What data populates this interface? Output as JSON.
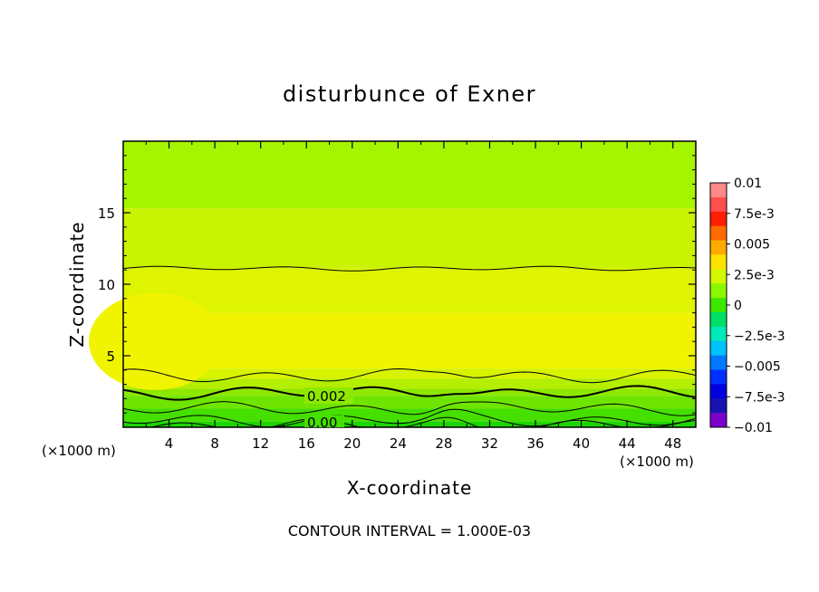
{
  "chart_data": {
    "type": "heatmap",
    "title": "disturbunce of Exner",
    "xlabel": "X-coordinate",
    "ylabel": "Z-coordinate",
    "x_unit_left": "(×1000 m)",
    "x_unit_right": "(×1000 m)",
    "footer": "CONTOUR INTERVAL = 1.000E-03",
    "xlim": [
      0,
      50
    ],
    "ylim": [
      0,
      20
    ],
    "x_ticks": [
      "4",
      "8",
      "12",
      "16",
      "20",
      "24",
      "28",
      "32",
      "36",
      "40",
      "44",
      "48"
    ],
    "y_ticks": [
      "5",
      "10",
      "15"
    ],
    "colorbar": {
      "labels": [
        "0.01",
        "7.5e-3",
        "0.005",
        "2.5e-3",
        "0",
        "−2.5e-3",
        "−0.005",
        "−7.5e-3",
        "−0.01"
      ],
      "colors": [
        "#ff8a8a",
        "#ff5050",
        "#ff1e00",
        "#ff6a00",
        "#ffab00",
        "#ffe200",
        "#d2f700",
        "#8cf700",
        "#3de800",
        "#00df66",
        "#00e9b8",
        "#00c2ff",
        "#0079ff",
        "#0030ff",
        "#0000e0",
        "#1a12b0",
        "#7a00cc"
      ]
    },
    "contour_labels": [
      "0.002",
      "0.00"
    ],
    "bands": [
      {
        "range": [
          15.3,
          20
        ],
        "value": 0.0015,
        "color": "#a6f500"
      },
      {
        "range": [
          11.1,
          15.3
        ],
        "value": 0.0025,
        "color": "#c9f300"
      },
      {
        "range": [
          8.0,
          11.1
        ],
        "value": 0.003,
        "color": "#def400"
      },
      {
        "range": [
          4.1,
          8.0
        ],
        "value": 0.0035,
        "color": "#f0f400"
      },
      {
        "range": [
          3.4,
          4.1
        ],
        "value": 0.003,
        "color": "#d7f300"
      },
      {
        "range": [
          2.7,
          3.4
        ],
        "value": 0.0025,
        "color": "#b4ee00"
      },
      {
        "range": [
          2.2,
          2.7
        ],
        "value": 0.002,
        "color": "#8ee800"
      },
      {
        "range": [
          1.3,
          2.2
        ],
        "value": 0.0015,
        "color": "#6fe400"
      },
      {
        "range": [
          0.4,
          1.3
        ],
        "value": 0.001,
        "color": "#45df00"
      },
      {
        "range": [
          0,
          0.4
        ],
        "value": 0.0005,
        "color": "#1cd400"
      }
    ],
    "contour_levels": [
      11.1,
      3.6,
      2.4,
      1.3,
      0.5,
      0.1
    ]
  }
}
